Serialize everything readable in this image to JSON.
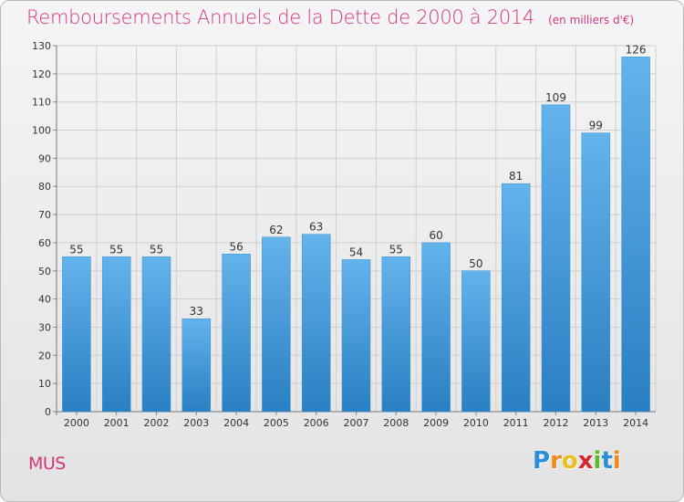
{
  "header": {
    "title": "Remboursements Annuels de la Dette de 2000 à 2014",
    "unit": "(en milliers d'€)"
  },
  "footer": {
    "commune": "MUS",
    "logo_letters": [
      "P",
      "r",
      "o",
      "x",
      "i",
      "t",
      "i"
    ],
    "logo_colors": [
      "#2a8fd6",
      "#f08a1c",
      "#e8c01c",
      "#d7262f",
      "#5bb92c",
      "#2a8fd6",
      "#f08a1c"
    ]
  },
  "colors": {
    "bar_top": "#63b3ec",
    "bar_bottom": "#2a7fc2",
    "title": "#d1367c"
  },
  "chart_data": {
    "type": "bar",
    "title": "Remboursements Annuels de la Dette de 2000 à 2014",
    "categories": [
      "2000",
      "2001",
      "2002",
      "2003",
      "2004",
      "2005",
      "2006",
      "2007",
      "2008",
      "2009",
      "2010",
      "2011",
      "2012",
      "2013",
      "2014"
    ],
    "values": [
      55,
      55,
      55,
      33,
      56,
      62,
      63,
      54,
      55,
      60,
      50,
      81,
      109,
      99,
      126
    ],
    "ylim": [
      0,
      130
    ],
    "yticks": [
      0,
      10,
      20,
      30,
      40,
      50,
      60,
      70,
      80,
      90,
      100,
      110,
      120,
      130
    ],
    "grid": true
  }
}
